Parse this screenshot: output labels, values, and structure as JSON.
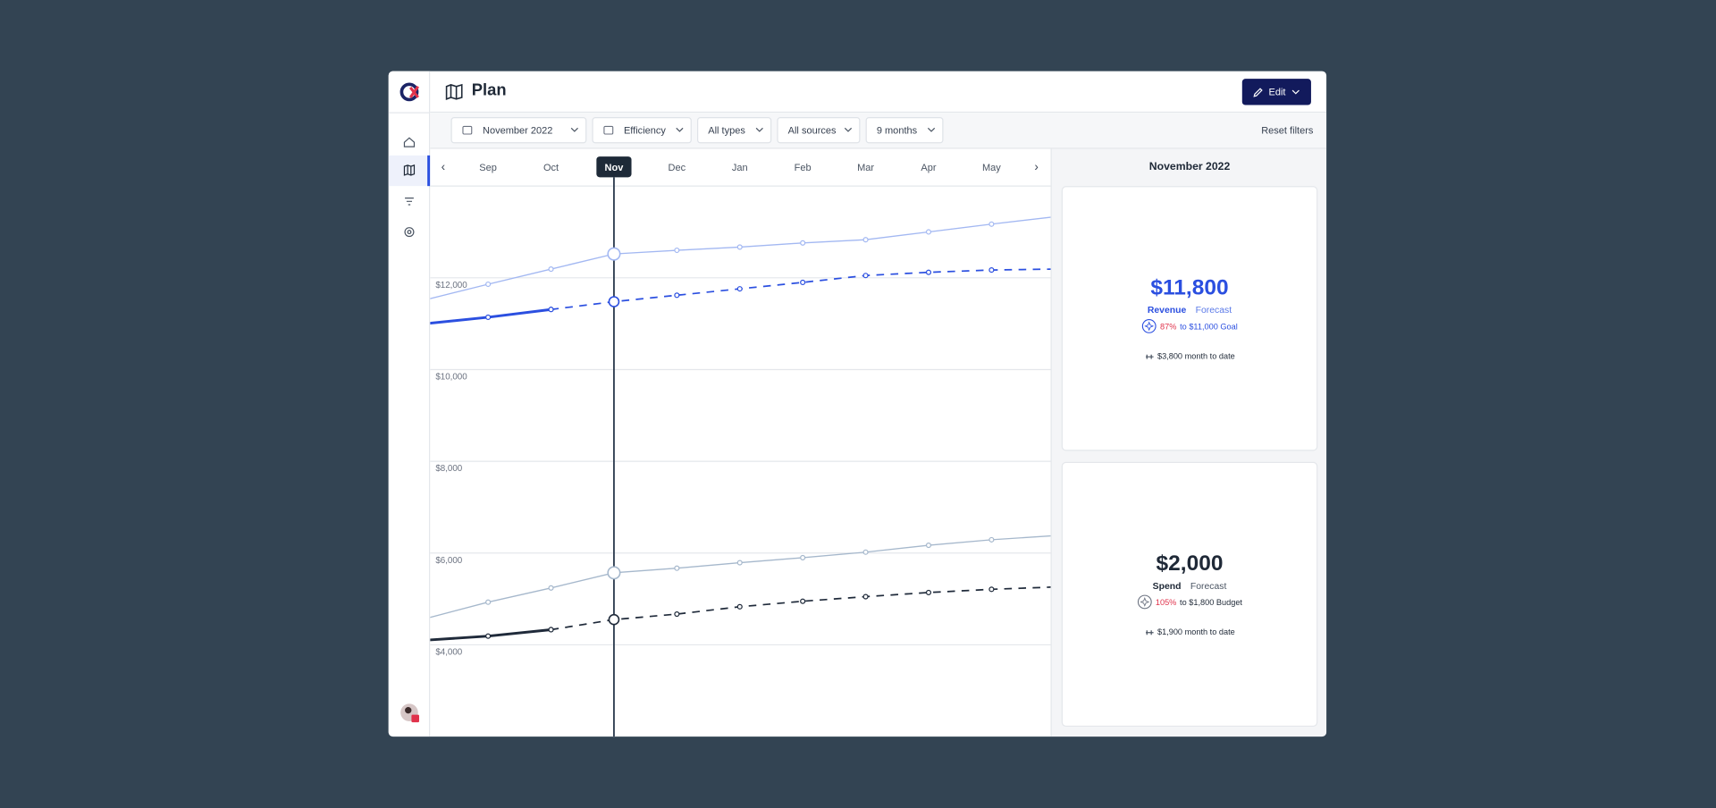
{
  "header": {
    "title": "Plan",
    "edit_button": "Edit"
  },
  "filters": [
    "November 2022",
    "Efficiency",
    "All types",
    "All sources",
    "9 months"
  ],
  "reset_filters": "Reset filters",
  "chart": {
    "type": "line",
    "categories": [
      null,
      "Sep",
      "Oct",
      "Nov",
      "Dec",
      "Jan",
      "Feb",
      "Mar",
      "Apr",
      "May",
      null
    ],
    "selected": "Nov",
    "ylim": [
      2000,
      14000
    ],
    "yticks": [
      {
        "value": 4000,
        "label": "$4,000"
      },
      {
        "value": 6000,
        "label": "$6,000"
      },
      {
        "value": 8000,
        "label": "$8,000"
      },
      {
        "value": 10000,
        "label": "$10,000"
      },
      {
        "value": 12000,
        "label": "$12,000"
      }
    ],
    "grid": true,
    "series": [
      {
        "color": "#a3b8f2",
        "line_style": "solid",
        "values": [
          11520,
          11860,
          12190,
          12520,
          12600,
          12670,
          12760,
          12830,
          13000,
          13170,
          13330
        ]
      },
      {
        "color": "#2b4fe0",
        "line_style": "bold",
        "values": [
          11000,
          11140,
          11310,
          null,
          null,
          null,
          null,
          null,
          null,
          null,
          null
        ]
      },
      {
        "color": "#2b4fe0",
        "line_style": "dashed",
        "values": [
          null,
          null,
          11310,
          11480,
          11620,
          11760,
          11900,
          12050,
          12120,
          12170,
          12190
        ]
      },
      {
        "color": "#a6b8cc",
        "line_style": "solid",
        "values": [
          4570,
          4930,
          5240,
          5570,
          5670,
          5790,
          5900,
          6020,
          6170,
          6290,
          6380
        ]
      },
      {
        "color": "#1f2a3a",
        "line_style": "bold",
        "values": [
          4100,
          4190,
          4330,
          null,
          null,
          null,
          null,
          null,
          null,
          null,
          null
        ]
      },
      {
        "color": "#1f2a3a",
        "line_style": "dashed",
        "values": [
          null,
          null,
          4330,
          4550,
          4670,
          4830,
          4950,
          5050,
          5140,
          5210,
          5260
        ]
      }
    ]
  },
  "panel": {
    "title": "November 2022",
    "cards": [
      {
        "value": "$11,800",
        "metric": "Revenue",
        "kind": "Forecast",
        "progress_pct": "87%",
        "progress_text": "to $11,000 Goal",
        "month_to_date": "$3,800 month to date"
      },
      {
        "value": "$2,000",
        "metric": "Spend",
        "kind": "Forecast",
        "progress_pct": "105%",
        "progress_text": "to $1,800 Budget",
        "month_to_date": "$1,900 month to date"
      }
    ]
  }
}
